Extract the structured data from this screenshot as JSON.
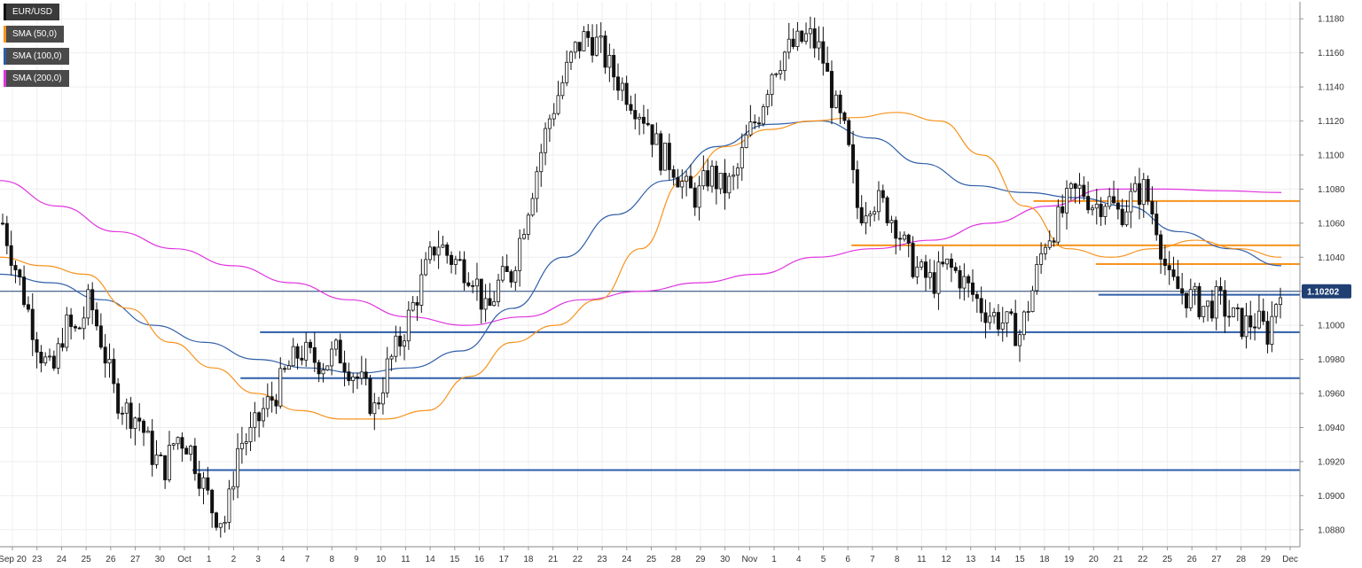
{
  "legend": [
    {
      "label": "EUR/USD",
      "color": "#111111"
    },
    {
      "label": "SMA (50,0)",
      "color": "#f7931e"
    },
    {
      "label": "SMA (100,0)",
      "color": "#2f5ea8"
    },
    {
      "label": "SMA (200,0)",
      "color": "#e033e0"
    }
  ],
  "chart_data": {
    "type": "candlestick",
    "symbol": "EUR/USD",
    "ylim": [
      1.087,
      1.119
    ],
    "y_ticks": [
      "1.0880",
      "1.0900",
      "1.0920",
      "1.0940",
      "1.0960",
      "1.0980",
      "1.1000",
      "1.1020",
      "1.1040",
      "1.1060",
      "1.1080",
      "1.1100",
      "1.1120",
      "1.1140",
      "1.1160",
      "1.1180"
    ],
    "x_ticks": [
      "Sep 20",
      "23",
      "24",
      "25",
      "26",
      "27",
      "30",
      "Oct",
      "1",
      "2",
      "3",
      "4",
      "7",
      "8",
      "9",
      "10",
      "11",
      "14",
      "15",
      "16",
      "17",
      "18",
      "21",
      "22",
      "23",
      "24",
      "25",
      "28",
      "29",
      "30",
      "Nov",
      "1",
      "4",
      "5",
      "6",
      "7",
      "8",
      "11",
      "12",
      "13",
      "14",
      "15",
      "18",
      "19",
      "20",
      "21",
      "22",
      "25",
      "26",
      "27",
      "28",
      "29",
      "Dec"
    ],
    "current_price": "1.10202",
    "price_line": 1.102,
    "close_series": [
      1.106,
      1.1035,
      1.101,
      1.0985,
      1.097,
      1.1,
      1.0995,
      1.1015,
      1.099,
      1.096,
      1.095,
      1.0945,
      1.0925,
      1.0915,
      1.0935,
      1.093,
      1.091,
      1.089,
      1.0885,
      1.093,
      1.0935,
      1.095,
      1.096,
      1.0975,
      1.0985,
      1.098,
      1.0978,
      1.0985,
      1.0975,
      1.0965,
      1.095,
      1.0975,
      1.099,
      1.101,
      1.103,
      1.105,
      1.104,
      1.1035,
      1.103,
      1.1005,
      1.1025,
      1.103,
      1.106,
      1.109,
      1.112,
      1.114,
      1.116,
      1.117,
      1.1165,
      1.115,
      1.114,
      1.113,
      1.112,
      1.11,
      1.1095,
      1.108,
      1.1075,
      1.109,
      1.108,
      1.1085,
      1.111,
      1.1125,
      1.115,
      1.116,
      1.1165,
      1.117,
      1.116,
      1.113,
      1.111,
      1.1065,
      1.1075,
      1.107,
      1.106,
      1.104,
      1.103,
      1.1025,
      1.1035,
      1.103,
      1.102,
      1.101,
      1.1005,
      1.1,
      1.0995,
      1.102,
      1.105,
      1.106,
      1.1075,
      1.108,
      1.107,
      1.1075,
      1.1065,
      1.1075,
      1.108,
      1.106,
      1.1025,
      1.102,
      1.1015,
      1.101,
      1.1015,
      1.1005,
      1.1,
      1.1003,
      1.0995,
      1.1025
    ],
    "sma50": [
      1.104,
      1.1035,
      1.103,
      1.101,
      1.099,
      1.0975,
      1.096,
      1.095,
      1.0945,
      1.0945,
      1.095,
      1.097,
      1.099,
      1.1,
      1.1015,
      1.1045,
      1.1085,
      1.1105,
      1.1115,
      1.112,
      1.1122,
      1.1125,
      1.112,
      1.11,
      1.107,
      1.1045,
      1.104,
      1.1045,
      1.105,
      1.1045,
      1.104
    ],
    "sma100": [
      1.103,
      1.1025,
      1.1015,
      1.1,
      1.099,
      1.098,
      1.0975,
      1.0972,
      1.0975,
      1.0985,
      1.101,
      1.104,
      1.1065,
      1.1085,
      1.1105,
      1.1118,
      1.112,
      1.111,
      1.1095,
      1.1082,
      1.1078,
      1.1075,
      1.107,
      1.1055,
      1.1045,
      1.1035
    ],
    "sma200": [
      1.1085,
      1.107,
      1.1055,
      1.1045,
      1.1035,
      1.1025,
      1.1015,
      1.1005,
      1.1,
      1.1005,
      1.1015,
      1.102,
      1.1025,
      1.103,
      1.104,
      1.1045,
      1.105,
      1.106,
      1.107,
      1.108,
      1.108,
      1.1079,
      1.1078
    ],
    "horizontal_levels": [
      {
        "value": 1.1073,
        "color": "#f7931e",
        "from": 0.795
      },
      {
        "value": 1.1047,
        "color": "#f7931e",
        "from": 0.655
      },
      {
        "value": 1.1036,
        "color": "#f7931e",
        "from": 0.843
      },
      {
        "value": 1.1018,
        "color": "#2f5ea8",
        "from": 0.845
      },
      {
        "value": 1.0996,
        "color": "#2f5ea8",
        "from": 0.2
      },
      {
        "value": 1.0969,
        "color": "#2f5ea8",
        "from": 0.185
      },
      {
        "value": 1.0915,
        "color": "#2f5ea8",
        "from": 0.148
      }
    ],
    "grid": true,
    "legend_position": "top-left"
  }
}
